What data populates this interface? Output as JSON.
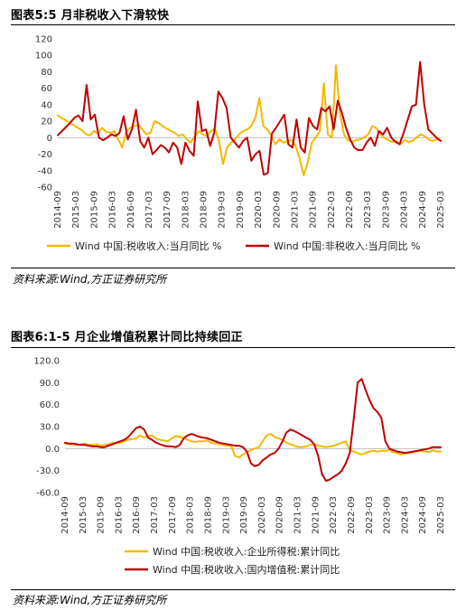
{
  "chart_data": [
    {
      "type": "line",
      "title": "图表5:5 月非税收入下滑较快",
      "ylim": [
        -60,
        120
      ],
      "yticks": [
        120,
        100,
        80,
        60,
        40,
        20,
        0,
        -20,
        -40,
        -60
      ],
      "xticks": [
        "2014-09",
        "2015-03",
        "2015-09",
        "2016-03",
        "2016-09",
        "2017-03",
        "2017-09",
        "2018-03",
        "2018-09",
        "2019-03",
        "2019-09",
        "2020-03",
        "2020-09",
        "2021-03",
        "2021-09",
        "2022-03",
        "2022-09",
        "2023-03",
        "2023-09",
        "2024-03",
        "2024-09",
        "2025-03"
      ],
      "grid": false,
      "legend_position": "bottom",
      "series": [
        {
          "name": "Wind 中国:税收收入:当月同比 %",
          "color": "#F5B800",
          "values": [
            27,
            24,
            21,
            18,
            15,
            12,
            9,
            4,
            3,
            8,
            5,
            12,
            7,
            6,
            8,
            -2,
            -12,
            8,
            12,
            14,
            16,
            10,
            4,
            6,
            20,
            18,
            14,
            11,
            8,
            6,
            2,
            4,
            -2,
            -6,
            2,
            8,
            4,
            2,
            8,
            11,
            -4,
            -32,
            -12,
            -6,
            -2,
            4,
            8,
            10,
            14,
            24,
            48,
            14,
            10,
            2,
            -8,
            -2,
            -6,
            -4,
            -3,
            -10,
            -25,
            -46,
            -30,
            -6,
            0,
            8,
            66,
            4,
            0,
            88,
            30,
            4,
            -3,
            -5,
            -3,
            -2,
            0,
            4,
            14,
            12,
            4,
            0,
            -3,
            -5,
            -4,
            -8,
            -3,
            -5,
            -4,
            0,
            4,
            2,
            -2,
            -4,
            -2,
            -3
          ]
        },
        {
          "name": "Wind 中国:非税收入:当月同比 %",
          "color": "#C00000",
          "values": [
            3,
            8,
            13,
            18,
            24,
            27,
            20,
            64,
            22,
            28,
            0,
            -3,
            0,
            4,
            2,
            6,
            26,
            -2,
            10,
            34,
            -4,
            -12,
            0,
            -20,
            -15,
            -9,
            -12,
            -18,
            -6,
            -12,
            -32,
            -6,
            -16,
            -22,
            44,
            8,
            10,
            -10,
            6,
            56,
            48,
            36,
            0,
            -6,
            -12,
            -4,
            0,
            -28,
            -20,
            -16,
            -45,
            -43,
            5,
            12,
            20,
            28,
            -8,
            -12,
            22,
            -12,
            -18,
            24,
            14,
            10,
            36,
            32,
            38,
            10,
            45,
            30,
            12,
            -2,
            -12,
            -15,
            -15,
            -6,
            0,
            -10,
            8,
            4,
            12,
            0,
            -5,
            -8,
            6,
            22,
            38,
            40,
            92,
            40,
            10,
            5,
            0,
            -4
          ]
        }
      ]
    },
    {
      "type": "line",
      "title": "图表6:1-5 月企业增值税累计同比持续回正",
      "ylim": [
        -60,
        120
      ],
      "yticks": [
        "120.0",
        "90.0",
        "60.0",
        "30.0",
        "0.0",
        "-30.0",
        "-60.0"
      ],
      "xticks": [
        "2014-09",
        "2015-03",
        "2015-09",
        "2016-03",
        "2016-09",
        "2017-03",
        "2017-09",
        "2018-03",
        "2018-09",
        "2019-03",
        "2019-09",
        "2020-03",
        "2020-09",
        "2021-03",
        "2021-09",
        "2022-03",
        "2022-09",
        "2023-03",
        "2023-09",
        "2024-03",
        "2024-09",
        "2025-03"
      ],
      "grid": false,
      "legend_position": "bottom",
      "series": [
        {
          "name": "Wind 中国:税收收入:企业所得税:累计同比",
          "color": "#F5B800",
          "values": [
            7,
            6,
            6,
            5,
            6,
            7,
            5,
            5,
            6,
            4,
            5,
            6,
            8,
            7,
            8,
            10,
            12,
            13,
            14,
            18,
            15,
            17,
            18,
            14,
            12,
            11,
            10,
            14,
            17,
            16,
            15,
            12,
            10,
            9,
            10,
            10,
            11,
            8,
            7,
            6,
            5,
            4,
            4,
            -10,
            -12,
            -8,
            -5,
            -2,
            0,
            2,
            10,
            18,
            20,
            16,
            14,
            12,
            8,
            6,
            4,
            2,
            2,
            3,
            5,
            6,
            4,
            3,
            2,
            3,
            4,
            6,
            8,
            10,
            -2,
            -4,
            -6,
            -8,
            -6,
            -4,
            -3,
            -4,
            -3,
            -3,
            -2,
            -5,
            -6,
            -8,
            -7,
            -6,
            -5,
            -4,
            -3,
            -4,
            -5,
            -2,
            -4,
            -4
          ]
        },
        {
          "name": "Wind 中国:税收收入:国内增值税:累计同比",
          "color": "#C00000",
          "values": [
            8,
            7,
            7,
            6,
            5,
            5,
            4,
            3,
            3,
            2,
            2,
            4,
            6,
            8,
            10,
            12,
            16,
            22,
            28,
            30,
            26,
            15,
            12,
            8,
            6,
            4,
            3,
            3,
            2,
            5,
            14,
            18,
            20,
            18,
            16,
            15,
            14,
            12,
            10,
            8,
            7,
            6,
            5,
            4,
            4,
            2,
            -4,
            -20,
            -24,
            -22,
            -16,
            -12,
            -8,
            -6,
            0,
            10,
            22,
            26,
            24,
            21,
            18,
            15,
            12,
            6,
            -10,
            -35,
            -44,
            -42,
            -38,
            -35,
            -30,
            -20,
            -6,
            40,
            90,
            95,
            80,
            66,
            55,
            50,
            42,
            10,
            0,
            -2,
            -4,
            -5,
            -6,
            -5,
            -4,
            -3,
            -2,
            -1,
            0,
            2,
            2,
            2
          ]
        }
      ]
    }
  ],
  "source_note": "资料来源:Wind,方正证券研究所"
}
